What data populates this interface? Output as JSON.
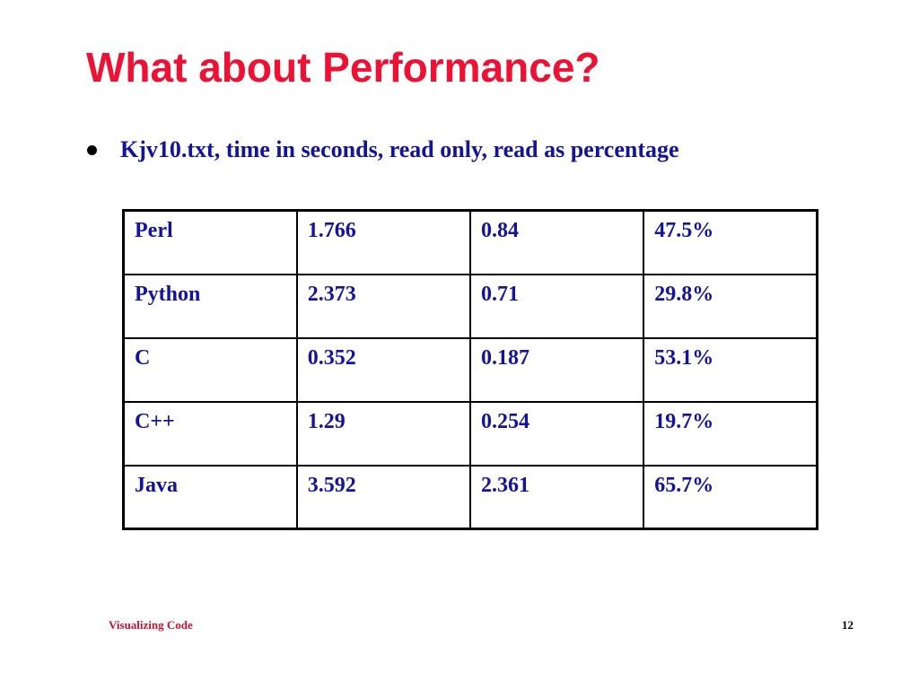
{
  "slide": {
    "title": "What about Performance?",
    "bullet": "Kjv10.txt, time in seconds, read only, read as percentage",
    "footer_left": "Visualizing Code",
    "footer_right": "12"
  },
  "table": {
    "rows": [
      [
        "Perl",
        "1.766",
        "0.84",
        "47.5%"
      ],
      [
        "Python",
        "2.373",
        "0.71",
        "29.8%"
      ],
      [
        "C",
        "0.352",
        "0.187",
        "53.1%"
      ],
      [
        "C++",
        "1.29",
        "0.254",
        "19.7%"
      ],
      [
        "Java",
        "3.592",
        "2.361",
        "65.7%"
      ]
    ]
  },
  "colors": {
    "title": "#ee1133",
    "body_text": "#13139b",
    "footer_left": "#cc1133"
  }
}
